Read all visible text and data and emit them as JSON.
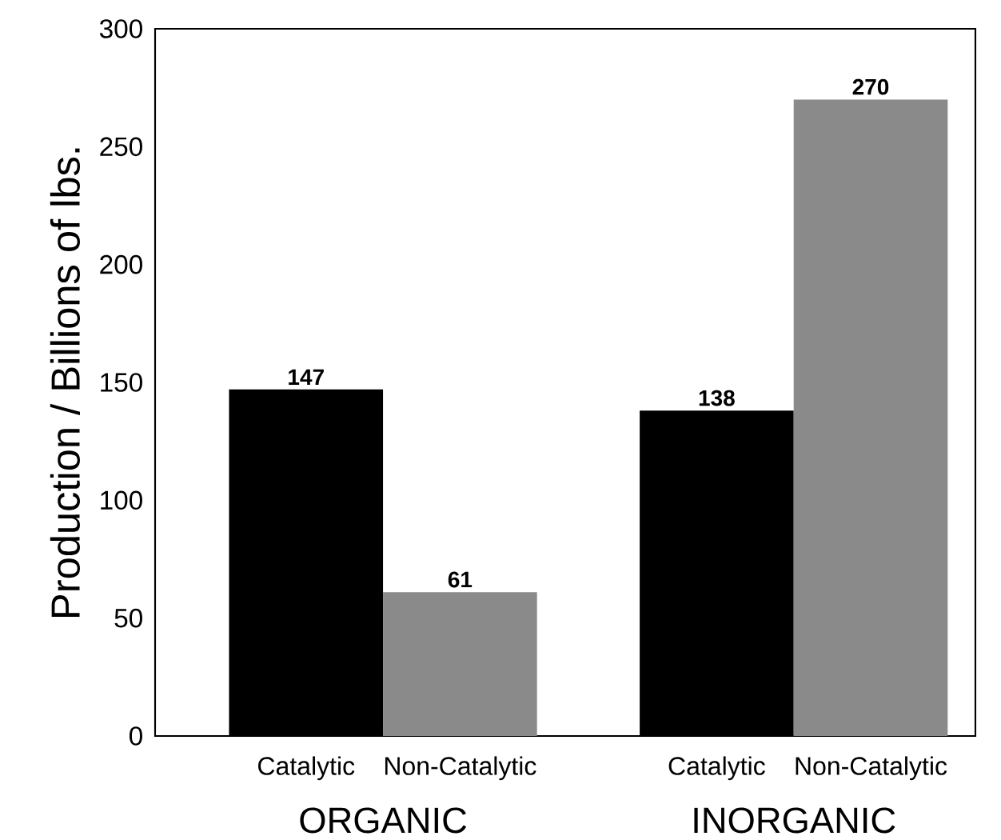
{
  "chart_data": {
    "type": "bar",
    "ylabel": "Production / Billions of lbs.",
    "categories": [
      "Catalytic",
      "Non-Catalytic",
      "Catalytic",
      "Non-Catalytic"
    ],
    "values": [
      147,
      61,
      138,
      270
    ],
    "colors": [
      "#000000",
      "#8a8a8a",
      "#000000",
      "#8a8a8a"
    ],
    "ylim": [
      0,
      300
    ],
    "yticks": [
      0,
      50,
      100,
      150,
      200,
      250,
      300
    ],
    "data_labels": true,
    "annotations": [
      "ORGANIC",
      "INORGANIC"
    ]
  }
}
